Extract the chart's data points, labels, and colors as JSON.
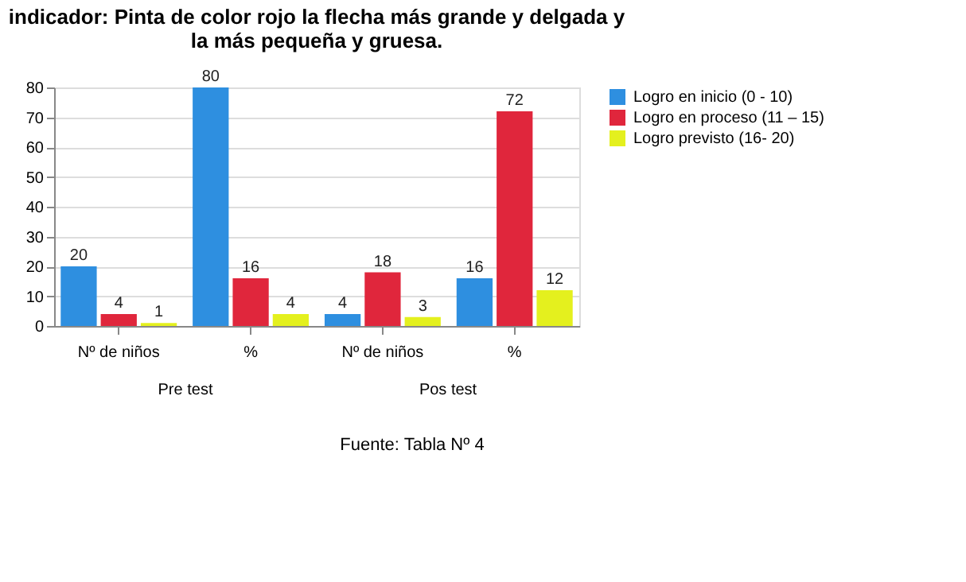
{
  "chart_data": {
    "type": "bar",
    "title": "indicador: Pinta de color rojo la flecha más grande y delgada y la más pequeña y gruesa.",
    "categories": [
      "Nº de niños",
      "%",
      "Nº de niños",
      "%"
    ],
    "series": [
      {
        "name": "Logro en inicio (0 - 10)",
        "color": "#2e8fe0",
        "values": [
          20,
          80,
          4,
          16
        ]
      },
      {
        "name": "Logro en proceso (11 – 15)",
        "color": "#e0263c",
        "values": [
          4,
          16,
          18,
          72
        ]
      },
      {
        "name": "Logro previsto (16- 20)",
        "color": "#e4f01e",
        "values": [
          1,
          4,
          3,
          12
        ]
      }
    ],
    "ylim": [
      0,
      80
    ],
    "yticks": [
      0,
      10,
      20,
      30,
      40,
      50,
      60,
      70,
      80
    ],
    "grid": "y",
    "legend": "right",
    "data_labels": true,
    "annotations": [
      "Pre test",
      "Pos test",
      "Fuente: Tabla Nº 4"
    ]
  }
}
